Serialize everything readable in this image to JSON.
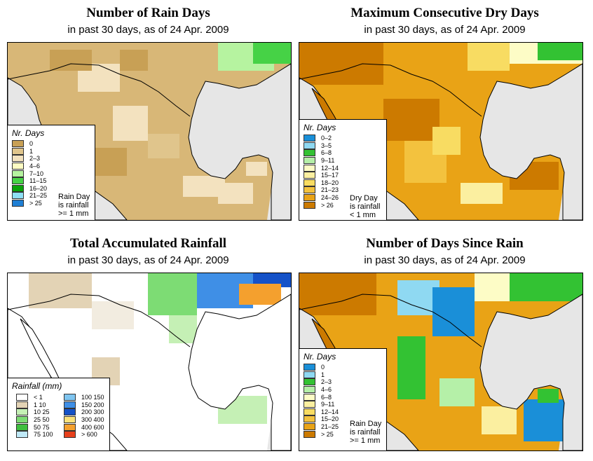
{
  "panels": [
    {
      "title": "Number of Rain Days",
      "subtitle": "in past 30 days, as of  24 Apr. 2009",
      "legend_title": "Nr. Days",
      "note": [
        "Rain Day",
        "is rainfall",
        ">= 1 mm"
      ],
      "classes": [
        {
          "label": "0",
          "color": "#c8a055"
        },
        {
          "label": "1",
          "color": "#e0c58c"
        },
        {
          "label": "2–3",
          "color": "#f3e2bf"
        },
        {
          "label": "4–6",
          "color": "#fdfcc3"
        },
        {
          "label": "7–10",
          "color": "#b6f3a0"
        },
        {
          "label": "11–15",
          "color": "#46d246"
        },
        {
          "label": "16–20",
          "color": "#0aa30a"
        },
        {
          "label": "21–25",
          "color": "#8ee0f5"
        },
        {
          "label": "> 25",
          "color": "#1f7fd4"
        }
      ]
    },
    {
      "title": "Maximum Consecutive Dry Days",
      "subtitle": "in past 30 days, as of  24 Apr. 2009",
      "legend_title": "Nr. Days",
      "note": [
        "Dry Day",
        "is rainfall",
        "< 1 mm"
      ],
      "classes": [
        {
          "label": "0–2",
          "color": "#1a8fd8"
        },
        {
          "label": "3–5",
          "color": "#8fd9f2"
        },
        {
          "label": "6–8",
          "color": "#33c233"
        },
        {
          "label": "9–11",
          "color": "#b5f0a8"
        },
        {
          "label": "12–14",
          "color": "#fdfcc6"
        },
        {
          "label": "15–17",
          "color": "#fbefa0"
        },
        {
          "label": "18–20",
          "color": "#f8dc62"
        },
        {
          "label": "21–23",
          "color": "#f3c23e"
        },
        {
          "label": "24–26",
          "color": "#e9a316"
        },
        {
          "label": "> 26",
          "color": "#cc7a00"
        }
      ]
    },
    {
      "title": "Total Accumulated Rainfall",
      "subtitle": "in past 30 days, as of  24 Apr. 2009",
      "legend_title": "Rainfall (mm)",
      "classes": [
        {
          "label": "< 1",
          "color": "#ffffff"
        },
        {
          "label": "1   10",
          "color": "#e3d3b5"
        },
        {
          "label": "10   25",
          "color": "#c5f0b5"
        },
        {
          "label": "25   50",
          "color": "#7ddc74"
        },
        {
          "label": "50   75",
          "color": "#3fbf3f"
        },
        {
          "label": "75   100",
          "color": "#bfe9f7"
        },
        {
          "label": "100   150",
          "color": "#7fc5f0"
        },
        {
          "label": "150   200",
          "color": "#3f8fe6"
        },
        {
          "label": "200   300",
          "color": "#1552c8"
        },
        {
          "label": "300   400",
          "color": "#fbe17a"
        },
        {
          "label": "400   600",
          "color": "#f4a02e"
        },
        {
          "label": "> 600",
          "color": "#e8401c"
        }
      ]
    },
    {
      "title": "Number of Days Since Rain",
      "subtitle": "in past 30 days, as of  24 Apr. 2009",
      "legend_title": "Nr. Days",
      "note": [
        "Rain Day",
        "is rainfall",
        ">= 1 mm"
      ],
      "classes": [
        {
          "label": "0",
          "color": "#1a8fd8"
        },
        {
          "label": "1",
          "color": "#8fd9f2"
        },
        {
          "label": "2–3",
          "color": "#33c233"
        },
        {
          "label": "4–6",
          "color": "#b5f0a8"
        },
        {
          "label": "6–8",
          "color": "#fdfcc6"
        },
        {
          "label": "9–11",
          "color": "#fbefa0"
        },
        {
          "label": "12–14",
          "color": "#f8dc62"
        },
        {
          "label": "15–20",
          "color": "#f3c23e"
        },
        {
          "label": "21–25",
          "color": "#e9a316"
        },
        {
          "label": "> 25",
          "color": "#cc7a00"
        }
      ]
    }
  ],
  "colors": {
    "ocean": "#e6e6e6",
    "border": "#000000"
  }
}
